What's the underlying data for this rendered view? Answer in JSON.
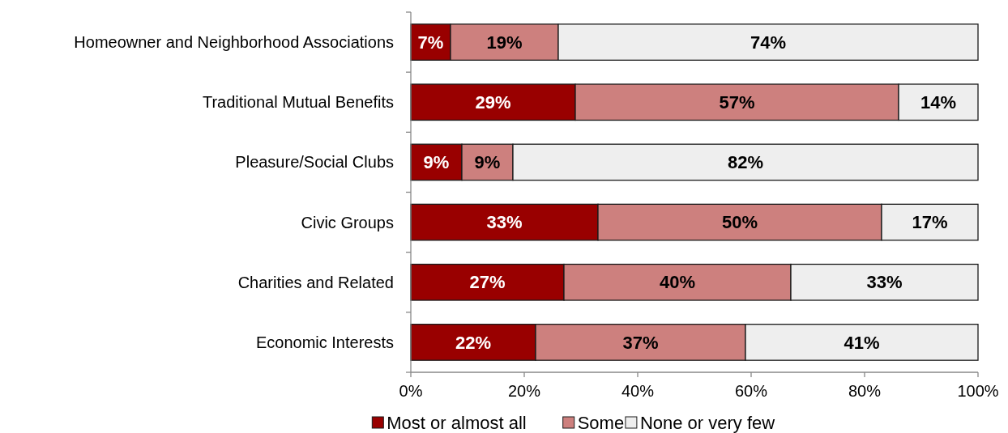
{
  "chart_data": {
    "type": "bar",
    "orientation": "horizontal",
    "stacked": true,
    "categories": [
      "Homeowner and Neighborhood Associations",
      "Traditional Mutual Benefits",
      "Pleasure/Social Clubs",
      "Civic Groups",
      "Charities and Related",
      "Economic Interests"
    ],
    "series": [
      {
        "name": "Most or almost all",
        "color": "#990000",
        "values": [
          7,
          29,
          9,
          33,
          27,
          22
        ],
        "value_labels": [
          "7%",
          "29%",
          "9%",
          "33%",
          "27%",
          "22%"
        ]
      },
      {
        "name": "Some",
        "color": "#cd807e",
        "values": [
          19,
          57,
          9,
          50,
          40,
          37
        ],
        "value_labels": [
          "19%",
          "57%",
          "9%",
          "50%",
          "40%",
          "37%"
        ]
      },
      {
        "name": "None or very few",
        "color": "#eeeeee",
        "values": [
          74,
          14,
          82,
          17,
          33,
          41
        ],
        "value_labels": [
          "74%",
          "14%",
          "82%",
          "17%",
          "33%",
          "41%"
        ]
      }
    ],
    "xlim": [
      0,
      100
    ],
    "xticks": [
      {
        "value": 0,
        "label": "0%"
      },
      {
        "value": 20,
        "label": "20%"
      },
      {
        "value": 40,
        "label": "40%"
      },
      {
        "value": 60,
        "label": "60%"
      },
      {
        "value": 80,
        "label": "80%"
      },
      {
        "value": 100,
        "label": "100%"
      }
    ],
    "legend": "bottom",
    "grid": false
  }
}
